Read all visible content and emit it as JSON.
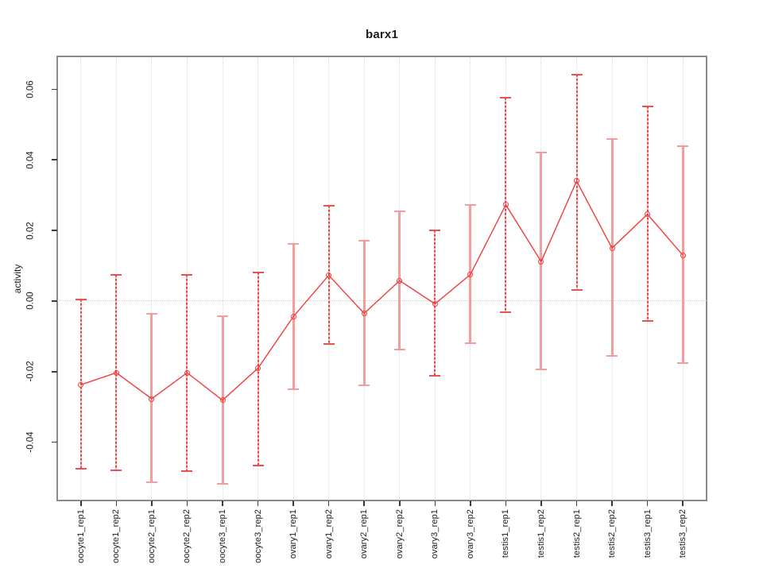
{
  "window": {
    "background": "#ffffff"
  },
  "chart_data": {
    "type": "line",
    "title": "barx1",
    "xlabel": "",
    "ylabel": "activity",
    "categories": [
      "oocyte1_rep1",
      "oocyte1_rep2",
      "oocyte2_rep1",
      "oocyte2_rep2",
      "oocyte3_rep1",
      "oocyte3_rep2",
      "ovary1_rep1",
      "ovary1_rep2",
      "ovary2_rep1",
      "ovary2_rep2",
      "ovary3_rep1",
      "ovary3_rep2",
      "testis1_rep1",
      "testis1_rep2",
      "testis2_rep1",
      "testis2_rep2",
      "testis3_rep1",
      "testis3_rep2"
    ],
    "series": [
      {
        "name": "activity",
        "values": [
          -0.0237,
          -0.0203,
          -0.0277,
          -0.0203,
          -0.0281,
          -0.019,
          -0.0044,
          0.0073,
          -0.0035,
          0.0058,
          -0.0008,
          0.0075,
          0.0273,
          0.0112,
          0.034,
          0.015,
          0.0246,
          0.013
        ],
        "err_high": [
          0.0004,
          0.0074,
          -0.0037,
          0.0075,
          -0.0043,
          0.0081,
          0.0161,
          0.0271,
          0.0172,
          0.0254,
          0.02,
          0.0272,
          0.0577,
          0.042,
          0.0642,
          0.0458,
          0.0551,
          0.0439
        ],
        "err_low": [
          -0.0476,
          -0.0479,
          -0.0513,
          -0.0482,
          -0.0517,
          -0.0467,
          -0.0249,
          -0.0122,
          -0.0239,
          -0.0138,
          -0.0211,
          -0.0119,
          -0.0032,
          -0.0194,
          0.0031,
          -0.0155,
          -0.0057,
          -0.0176
        ]
      }
    ],
    "error_bar_styles": [
      "dashed",
      "dashed",
      "solid",
      "dashed",
      "solid",
      "dashed",
      "solid",
      "dashed",
      "solid",
      "solid",
      "dashed",
      "solid",
      "dashed",
      "solid",
      "dashed",
      "solid",
      "dashed",
      "solid"
    ],
    "yticks": [
      0.06,
      0.04,
      0.02,
      0.0,
      -0.02,
      -0.04
    ],
    "ylim": [
      -0.0565,
      0.0692
    ],
    "grid": {
      "vertical_at_each_category": true,
      "horizontal_at_zero": true,
      "style": "dotted"
    },
    "legend": "none",
    "marker": "open-circle",
    "colors": {
      "series_line": "#f23d3d",
      "error_bar_solid": "#f59c9c",
      "error_bar_dashed": "#e4403f",
      "grid": "#dcdcdc",
      "box_border": "#8a8a8a",
      "text": "#1c1c1c"
    }
  }
}
